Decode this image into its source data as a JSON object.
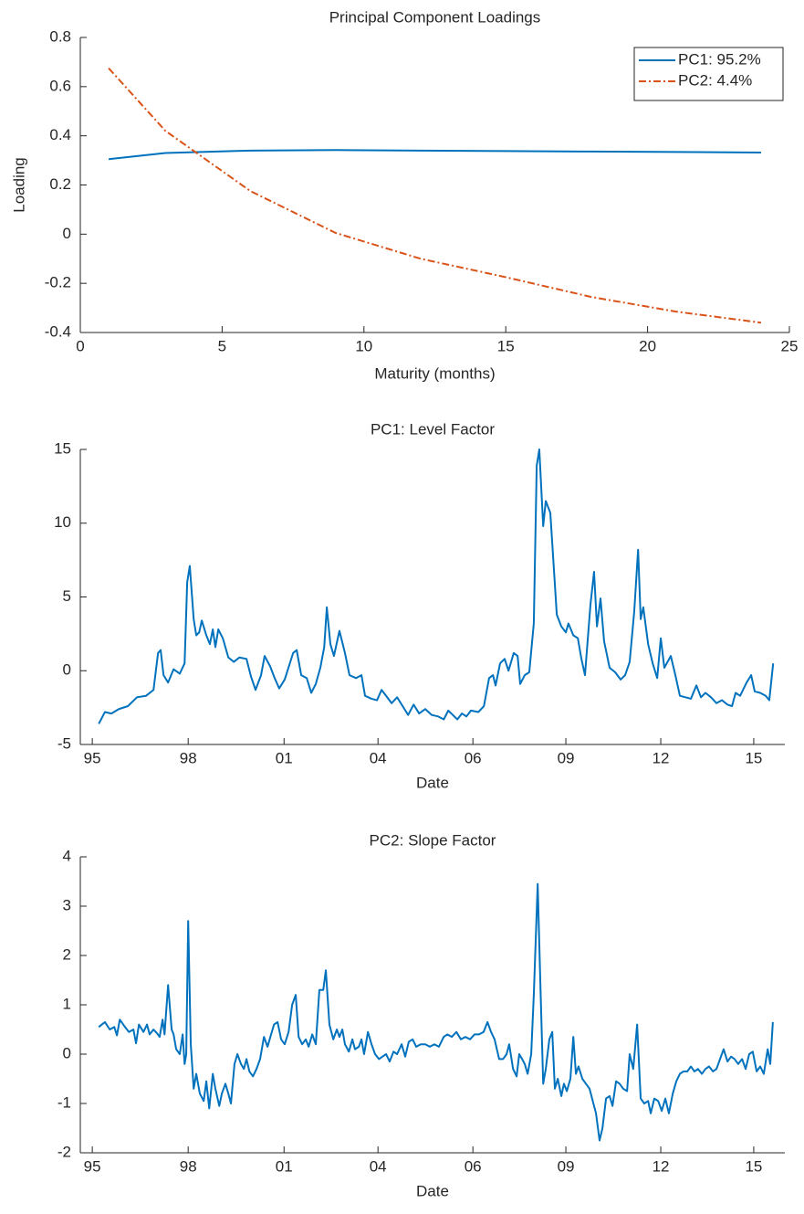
{
  "chart_data": [
    {
      "type": "line",
      "title": "Principal Component Loadings",
      "xlabel": "Maturity (months)",
      "ylabel": "Loading",
      "x": [
        1,
        3,
        6,
        9,
        12,
        15,
        18,
        21,
        24
      ],
      "series": [
        {
          "name": "PC1: 95.2%",
          "color": "#0072bd",
          "linestyle": "-",
          "values": [
            0.305,
            0.33,
            0.34,
            0.342,
            0.34,
            0.338,
            0.336,
            0.334,
            0.332
          ]
        },
        {
          "name": "PC2: 4.4%",
          "color": "#d95319",
          "linestyle": "-.",
          "values": [
            0.675,
            0.42,
            0.175,
            0.005,
            -0.1,
            -0.175,
            -0.255,
            -0.315,
            -0.36
          ]
        }
      ],
      "xlim": [
        0,
        25
      ],
      "xticks": [
        0,
        5,
        10,
        15,
        20,
        25
      ],
      "ylim": [
        -0.4,
        0.8
      ],
      "yticks": [
        -0.4,
        -0.2,
        0,
        0.2,
        0.4,
        0.6,
        0.8
      ],
      "legend": "northeast"
    },
    {
      "type": "line",
      "title": "PC1: Level Factor",
      "xlabel": "Date",
      "x": [
        1995.4,
        1995.59,
        1995.79,
        1996.02,
        1996.3,
        1996.58,
        1996.86,
        1997.09,
        1997.23,
        1997.31,
        1997.4,
        1997.54,
        1997.71,
        1997.9,
        1998.05,
        1998.13,
        1998.21,
        1998.33,
        1998.41,
        1998.5,
        1998.58,
        1998.72,
        1998.83,
        1998.92,
        1999.0,
        1999.09,
        1999.23,
        1999.4,
        1999.57,
        1999.74,
        1999.96,
        2000.1,
        2000.24,
        2000.41,
        2000.52,
        2000.69,
        2000.83,
        2000.97,
        2001.14,
        2001.4,
        2001.51,
        2001.65,
        2001.82,
        2001.96,
        2002.1,
        2002.24,
        2002.36,
        2002.44,
        2002.55,
        2002.66,
        2002.83,
        2003.0,
        2003.14,
        2003.34,
        2003.51,
        2003.62,
        2003.82,
        2003.99,
        2004.13,
        2004.27,
        2004.44,
        2004.61,
        2004.78,
        2004.95,
        2005.12,
        2005.29,
        2005.48,
        2005.68,
        2005.88,
        2006.05,
        2006.19,
        2006.33,
        2006.47,
        2006.61,
        2006.75,
        2006.89,
        2007.12,
        2007.29,
        2007.45,
        2007.57,
        2007.65,
        2007.79,
        2007.93,
        2008.05,
        2008.21,
        2008.33,
        2008.41,
        2008.55,
        2008.69,
        2008.83,
        2008.92,
        2009.0,
        2009.12,
        2009.2,
        2009.34,
        2009.54,
        2009.68,
        2009.82,
        2009.9,
        2010.05,
        2010.19,
        2010.3,
        2010.41,
        2010.58,
        2010.69,
        2010.78,
        2010.89,
        2011.0,
        2011.17,
        2011.34,
        2011.51,
        2011.65,
        2011.79,
        2011.93,
        2012.05,
        2012.13,
        2012.21,
        2012.36,
        2012.5,
        2012.64,
        2012.75,
        2012.86,
        2013.06,
        2013.2,
        2013.34,
        2013.51,
        2013.68,
        2013.85,
        2013.99,
        2014.13,
        2014.3,
        2014.47,
        2014.64,
        2014.81,
        2014.95,
        2015.06,
        2015.2,
        2015.4,
        2015.54,
        2015.65,
        2015.82,
        2015.99,
        2016.1,
        2016.22
      ],
      "series": [
        {
          "color": "#0072bd",
          "linestyle": "-",
          "values": [
            -3.6,
            -2.8,
            -2.9,
            -2.6,
            -2.4,
            -1.8,
            -1.7,
            -1.3,
            1.2,
            1.4,
            -0.3,
            -0.8,
            0.1,
            -0.2,
            0.5,
            6.0,
            7.1,
            3.5,
            2.4,
            2.6,
            3.4,
            2.4,
            1.8,
            2.8,
            1.6,
            2.8,
            2.2,
            0.9,
            0.6,
            0.9,
            0.8,
            -0.4,
            -1.3,
            -0.3,
            1.0,
            0.3,
            -0.5,
            -1.2,
            -0.6,
            1.2,
            1.4,
            -0.3,
            -0.5,
            -1.5,
            -0.9,
            0.2,
            1.6,
            4.3,
            1.8,
            1.0,
            2.7,
            1.2,
            -0.3,
            -0.5,
            -0.3,
            -1.7,
            -1.9,
            -2.0,
            -1.3,
            -1.7,
            -2.2,
            -1.8,
            -2.4,
            -3.0,
            -2.3,
            -2.9,
            -2.6,
            -3.0,
            -3.1,
            -3.3,
            -2.7,
            -3.0,
            -3.3,
            -2.9,
            -3.1,
            -2.7,
            -2.8,
            -2.4,
            -0.5,
            -0.3,
            -1.0,
            0.5,
            0.8,
            0,
            1.2,
            1.0,
            -0.9,
            -0.3,
            -0.1,
            3.2,
            13.9,
            15.0,
            9.8,
            11.5,
            10.7,
            3.8,
            3.0,
            2.6,
            3.2,
            2.4,
            2.2,
            0.8,
            -0.3,
            4.5,
            6.7,
            3.0,
            4.9,
            2.0,
            0.2,
            -0.1,
            -0.6,
            -0.3,
            0.6,
            4.0,
            8.2,
            3.5,
            4.3,
            1.8,
            0.5,
            -0.5,
            2.2,
            0.2,
            1.0,
            -0.3,
            -1.7,
            -1.8,
            -1.9,
            -1.0,
            -1.8,
            -1.5,
            -1.8,
            -2.2,
            -2.0,
            -2.3,
            -2.4,
            -1.5,
            -1.7,
            -0.8,
            -0.3,
            -1.4,
            -1.5,
            -1.7,
            -2.0,
            0.5
          ]
        }
      ],
      "xlim": [
        1994.83,
        2016.58
      ],
      "xticks": [
        {
          "value": 1995.2,
          "label": "95"
        },
        {
          "value": 1998.16,
          "label": "98"
        },
        {
          "value": 2001.12,
          "label": "01"
        },
        {
          "value": 2004.02,
          "label": "04"
        },
        {
          "value": 2006.95,
          "label": "06"
        },
        {
          "value": 2009.82,
          "label": "09"
        },
        {
          "value": 2012.75,
          "label": "12"
        },
        {
          "value": 2015.62,
          "label": "15"
        }
      ],
      "ylim": [
        -5,
        15
      ],
      "yticks": [
        -5,
        0,
        5,
        10,
        15
      ]
    },
    {
      "type": "line",
      "title": "PC2: Slope Factor",
      "xlabel": "Date",
      "x": [
        1995.4,
        1995.59,
        1995.74,
        1995.88,
        1995.96,
        1996.05,
        1996.21,
        1996.33,
        1996.47,
        1996.55,
        1996.64,
        1996.78,
        1996.89,
        1996.97,
        1997.09,
        1997.2,
        1997.28,
        1997.37,
        1997.43,
        1997.54,
        1997.65,
        1997.71,
        1997.79,
        1997.9,
        1997.99,
        1998.05,
        1998.1,
        1998.16,
        1998.24,
        1998.33,
        1998.41,
        1998.52,
        1998.64,
        1998.72,
        1998.81,
        1998.92,
        1999.0,
        1999.12,
        1999.2,
        1999.31,
        1999.4,
        1999.48,
        1999.59,
        1999.68,
        1999.79,
        1999.88,
        1999.96,
        2000.05,
        2000.16,
        2000.27,
        2000.38,
        2000.5,
        2000.61,
        2000.72,
        2000.81,
        2000.92,
        2001.03,
        2001.14,
        2001.26,
        2001.37,
        2001.48,
        2001.57,
        2001.68,
        2001.79,
        2001.88,
        2001.99,
        2002.1,
        2002.21,
        2002.33,
        2002.41,
        2002.52,
        2002.64,
        2002.75,
        2002.83,
        2002.92,
        2003.0,
        2003.12,
        2003.23,
        2003.31,
        2003.43,
        2003.51,
        2003.59,
        2003.71,
        2003.82,
        2003.93,
        2004.05,
        2004.16,
        2004.27,
        2004.38,
        2004.5,
        2004.61,
        2004.75,
        2004.86,
        2004.97,
        2005.09,
        2005.2,
        2005.34,
        2005.48,
        2005.62,
        2005.76,
        2005.9,
        2006.05,
        2006.16,
        2006.3,
        2006.44,
        2006.58,
        2006.72,
        2006.86,
        2007.0,
        2007.14,
        2007.28,
        2007.4,
        2007.51,
        2007.62,
        2007.76,
        2007.88,
        2007.99,
        2008.07,
        2008.19,
        2008.3,
        2008.38,
        2008.47,
        2008.55,
        2008.64,
        2008.75,
        2008.83,
        2008.95,
        2009.03,
        2009.12,
        2009.2,
        2009.31,
        2009.4,
        2009.48,
        2009.57,
        2009.68,
        2009.76,
        2009.85,
        2009.96,
        2010.05,
        2010.13,
        2010.21,
        2010.33,
        2010.44,
        2010.55,
        2010.67,
        2010.75,
        2010.86,
        2010.95,
        2011.06,
        2011.17,
        2011.26,
        2011.37,
        2011.48,
        2011.59,
        2011.71,
        2011.79,
        2011.9,
        2012.02,
        2012.13,
        2012.24,
        2012.36,
        2012.44,
        2012.55,
        2012.67,
        2012.78,
        2012.89,
        2013.0,
        2013.12,
        2013.23,
        2013.34,
        2013.45,
        2013.57,
        2013.68,
        2013.79,
        2013.9,
        2014.02,
        2014.13,
        2014.24,
        2014.36,
        2014.47,
        2014.58,
        2014.69,
        2014.81,
        2014.92,
        2015.03,
        2015.14,
        2015.26,
        2015.37,
        2015.48,
        2015.59,
        2015.71,
        2015.82,
        2015.93,
        2016.05,
        2016.13,
        2016.21
      ],
      "series": [
        {
          "color": "#0072bd",
          "linestyle": "-",
          "values": [
            0.55,
            0.65,
            0.5,
            0.55,
            0.38,
            0.7,
            0.55,
            0.45,
            0.5,
            0.22,
            0.6,
            0.45,
            0.6,
            0.4,
            0.5,
            0.42,
            0.35,
            0.7,
            0.4,
            1.4,
            0.5,
            0.4,
            0.1,
            0,
            0.4,
            -0.2,
            0,
            2.7,
            0.2,
            -0.7,
            -0.4,
            -0.8,
            -0.95,
            -0.55,
            -1.1,
            -0.4,
            -0.7,
            -1.05,
            -0.8,
            -0.6,
            -0.8,
            -1.0,
            -0.2,
            0,
            -0.2,
            -0.3,
            -0.1,
            -0.35,
            -0.45,
            -0.3,
            -0.1,
            0.35,
            0.15,
            0.4,
            0.6,
            0.65,
            0.3,
            0.2,
            0.45,
            1.0,
            1.2,
            0.35,
            0.2,
            0.3,
            0.15,
            0.4,
            0.2,
            1.3,
            1.3,
            1.7,
            0.6,
            0.3,
            0.5,
            0.35,
            0.5,
            0.2,
            0.05,
            0.3,
            0.1,
            0.15,
            0.3,
            0,
            0.45,
            0.2,
            0,
            -0.1,
            -0.05,
            0,
            -0.15,
            0.05,
            0,
            0.2,
            -0.05,
            0.25,
            0.3,
            0.15,
            0.2,
            0.2,
            0.15,
            0.2,
            0.15,
            0.35,
            0.4,
            0.35,
            0.45,
            0.3,
            0.35,
            0.3,
            0.4,
            0.4,
            0.45,
            0.65,
            0.45,
            0.3,
            -0.1,
            -0.1,
            0,
            0.2,
            -0.3,
            -0.45,
            0,
            -0.1,
            -0.2,
            -0.4,
            0,
            1.2,
            3.45,
            1.5,
            -0.6,
            -0.3,
            0.3,
            0.45,
            -0.7,
            -0.5,
            -0.85,
            -0.6,
            -0.75,
            -0.5,
            0.35,
            -0.4,
            -0.25,
            -0.5,
            -0.6,
            -0.7,
            -1.0,
            -1.2,
            -1.75,
            -1.5,
            -0.9,
            -0.85,
            -1.05,
            -0.55,
            -0.6,
            -0.7,
            -0.75,
            0,
            -0.3,
            0.6,
            -0.9,
            -1.0,
            -0.95,
            -1.2,
            -0.9,
            -0.95,
            -1.15,
            -0.9,
            -1.2,
            -0.8,
            -0.55,
            -0.4,
            -0.35,
            -0.35,
            -0.25,
            -0.35,
            -0.3,
            -0.4,
            -0.3,
            -0.25,
            -0.35,
            -0.3,
            -0.1,
            0.1,
            -0.15,
            -0.05,
            -0.1,
            -0.2,
            -0.1,
            -0.3,
            0,
            0.05,
            -0.35,
            -0.25,
            -0.4,
            0.1,
            -0.2,
            0.65
          ]
        }
      ],
      "xlim": [
        1994.83,
        2016.58
      ],
      "xticks": [
        {
          "value": 1995.2,
          "label": "95"
        },
        {
          "value": 1998.16,
          "label": "98"
        },
        {
          "value": 2001.12,
          "label": "01"
        },
        {
          "value": 2004.02,
          "label": "04"
        },
        {
          "value": 2006.95,
          "label": "06"
        },
        {
          "value": 2009.82,
          "label": "09"
        },
        {
          "value": 2012.75,
          "label": "12"
        },
        {
          "value": 2015.62,
          "label": "15"
        }
      ],
      "ylim": [
        -2,
        4
      ],
      "yticks": [
        -2,
        -1,
        0,
        1,
        2,
        3,
        4
      ]
    }
  ]
}
